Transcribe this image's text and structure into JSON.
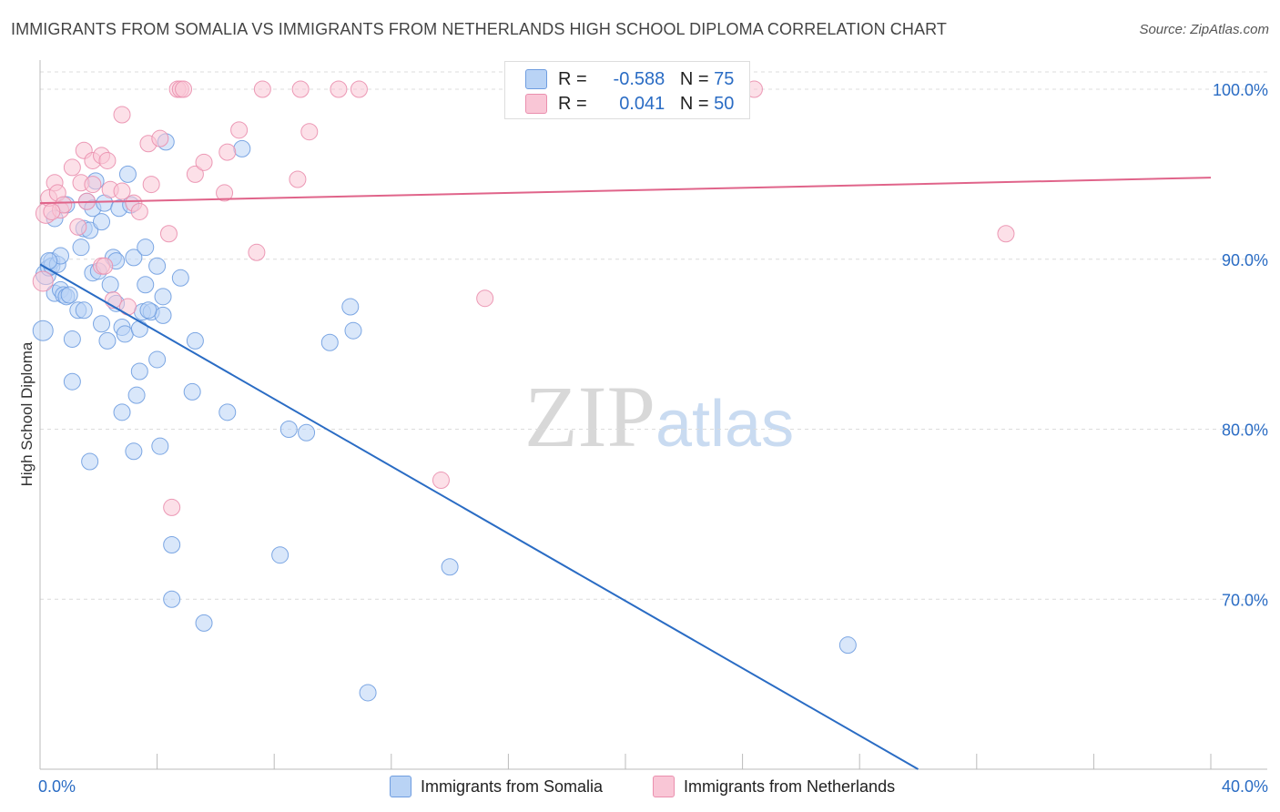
{
  "title": "IMMIGRANTS FROM SOMALIA VS IMMIGRANTS FROM NETHERLANDS HIGH SCHOOL DIPLOMA CORRELATION CHART",
  "source": "Source: ZipAtlas.com",
  "watermark": {
    "zip": "ZIP",
    "atlas": "atlas"
  },
  "legend": {
    "somalia": {
      "r_label": "R =",
      "r_value": "-0.588",
      "n_label": "N =",
      "n_value": "75"
    },
    "netherlands": {
      "r_label": "R =",
      "r_value": "0.041",
      "n_label": "N =",
      "n_value": "50"
    }
  },
  "bottom_legend": {
    "somalia": "Immigrants from Somalia",
    "netherlands": "Immigrants from Netherlands"
  },
  "colors": {
    "blue": "#6f9de0",
    "blue_fill": "#b9d3f5",
    "blue_line": "#2a6cc4",
    "pink": "#ea8fae",
    "pink_fill": "#f9c6d6",
    "pink_line": "#e0648a",
    "tick_text": "#2a6cc4"
  },
  "chart_data": {
    "type": "scatter",
    "title": "IMMIGRANTS FROM SOMALIA VS IMMIGRANTS FROM NETHERLANDS HIGH SCHOOL DIPLOMA CORRELATION CHART",
    "xlabel": "",
    "ylabel": "High School Diploma",
    "xlim": [
      0,
      40
    ],
    "ylim": [
      60,
      101.5
    ],
    "x_tick_labels": [
      "0.0%",
      "40.0%"
    ],
    "y_ticks": [
      70,
      80,
      90,
      100
    ],
    "y_tick_labels": [
      "70.0%",
      "80.0%",
      "90.0%",
      "100.0%"
    ],
    "grid": true,
    "series": [
      {
        "name": "Immigrants from Somalia",
        "points": [
          [
            0.1,
            85.8
          ],
          [
            0.2,
            89.1
          ],
          [
            0.3,
            89.5
          ],
          [
            0.4,
            89.9
          ],
          [
            0.4,
            89.6
          ],
          [
            0.5,
            92.4
          ],
          [
            0.5,
            88.0
          ],
          [
            0.6,
            89.7
          ],
          [
            0.7,
            90.2
          ],
          [
            0.7,
            88.2
          ],
          [
            0.8,
            87.9
          ],
          [
            0.9,
            87.8
          ],
          [
            0.9,
            93.2
          ],
          [
            1.0,
            87.9
          ],
          [
            1.1,
            85.3
          ],
          [
            1.1,
            82.8
          ],
          [
            1.3,
            87.0
          ],
          [
            1.4,
            90.7
          ],
          [
            1.5,
            87.0
          ],
          [
            1.5,
            91.8
          ],
          [
            1.6,
            93.4
          ],
          [
            1.7,
            91.7
          ],
          [
            1.7,
            78.1
          ],
          [
            1.8,
            93.0
          ],
          [
            1.8,
            89.2
          ],
          [
            1.9,
            94.6
          ],
          [
            2.1,
            92.2
          ],
          [
            2.1,
            86.2
          ],
          [
            2.2,
            93.3
          ],
          [
            2.3,
            85.2
          ],
          [
            2.4,
            88.5
          ],
          [
            2.5,
            90.1
          ],
          [
            2.6,
            87.4
          ],
          [
            2.6,
            89.9
          ],
          [
            2.7,
            93.0
          ],
          [
            2.8,
            86.0
          ],
          [
            2.8,
            81.0
          ],
          [
            2.9,
            85.6
          ],
          [
            3.0,
            95.0
          ],
          [
            3.1,
            93.2
          ],
          [
            3.2,
            90.1
          ],
          [
            3.2,
            78.7
          ],
          [
            3.3,
            82.0
          ],
          [
            3.4,
            83.4
          ],
          [
            3.4,
            85.9
          ],
          [
            3.5,
            86.9
          ],
          [
            3.6,
            90.7
          ],
          [
            3.6,
            88.5
          ],
          [
            3.8,
            86.9
          ],
          [
            4.0,
            84.1
          ],
          [
            4.0,
            89.6
          ],
          [
            4.1,
            79.0
          ],
          [
            4.2,
            86.7
          ],
          [
            4.2,
            87.8
          ],
          [
            4.3,
            96.9
          ],
          [
            4.5,
            73.2
          ],
          [
            4.5,
            70.0
          ],
          [
            4.8,
            88.9
          ],
          [
            5.3,
            85.2
          ],
          [
            5.2,
            82.2
          ],
          [
            5.6,
            68.6
          ],
          [
            6.4,
            81.0
          ],
          [
            6.9,
            96.5
          ],
          [
            8.2,
            72.6
          ],
          [
            8.5,
            80.0
          ],
          [
            9.1,
            79.8
          ],
          [
            9.9,
            85.1
          ],
          [
            10.6,
            87.2
          ],
          [
            10.7,
            85.8
          ],
          [
            11.2,
            64.5
          ],
          [
            14.0,
            71.9
          ],
          [
            27.6,
            67.3
          ],
          [
            2.0,
            89.3
          ],
          [
            3.7,
            87.0
          ],
          [
            0.3,
            89.9
          ]
        ]
      },
      {
        "name": "Immigrants from Netherlands",
        "points": [
          [
            0.1,
            88.7
          ],
          [
            0.2,
            92.7
          ],
          [
            0.3,
            93.6
          ],
          [
            0.5,
            94.5
          ],
          [
            0.6,
            93.9
          ],
          [
            0.7,
            92.9
          ],
          [
            0.8,
            93.2
          ],
          [
            1.1,
            95.4
          ],
          [
            1.3,
            91.9
          ],
          [
            1.4,
            94.5
          ],
          [
            1.5,
            96.4
          ],
          [
            1.6,
            93.4
          ],
          [
            1.8,
            94.4
          ],
          [
            1.8,
            95.8
          ],
          [
            2.1,
            89.6
          ],
          [
            2.1,
            96.1
          ],
          [
            2.3,
            95.8
          ],
          [
            2.4,
            94.1
          ],
          [
            2.5,
            87.6
          ],
          [
            2.8,
            94.0
          ],
          [
            2.8,
            98.5
          ],
          [
            3.0,
            87.2
          ],
          [
            3.2,
            93.3
          ],
          [
            3.4,
            92.8
          ],
          [
            3.7,
            96.8
          ],
          [
            3.8,
            94.4
          ],
          [
            4.1,
            97.1
          ],
          [
            4.4,
            91.5
          ],
          [
            4.5,
            75.4
          ],
          [
            4.7,
            100.0
          ],
          [
            4.8,
            100.0
          ],
          [
            4.9,
            100.0
          ],
          [
            5.3,
            95.0
          ],
          [
            5.6,
            95.7
          ],
          [
            6.3,
            93.9
          ],
          [
            6.4,
            96.3
          ],
          [
            6.8,
            97.6
          ],
          [
            7.4,
            90.4
          ],
          [
            7.6,
            100.0
          ],
          [
            8.8,
            94.7
          ],
          [
            8.9,
            100.0
          ],
          [
            9.2,
            97.5
          ],
          [
            10.2,
            100.0
          ],
          [
            10.9,
            100.0
          ],
          [
            13.7,
            77.0
          ],
          [
            15.2,
            87.7
          ],
          [
            24.4,
            100.0
          ],
          [
            33.0,
            91.5
          ],
          [
            2.2,
            89.6
          ],
          [
            0.4,
            92.8
          ]
        ]
      }
    ],
    "trend_lines": [
      {
        "name": "Immigrants from Somalia",
        "from": [
          0,
          89.7
        ],
        "to": [
          30,
          60
        ]
      },
      {
        "name": "Immigrants from Netherlands",
        "from": [
          0,
          93.3
        ],
        "to": [
          40,
          94.8
        ]
      }
    ]
  }
}
